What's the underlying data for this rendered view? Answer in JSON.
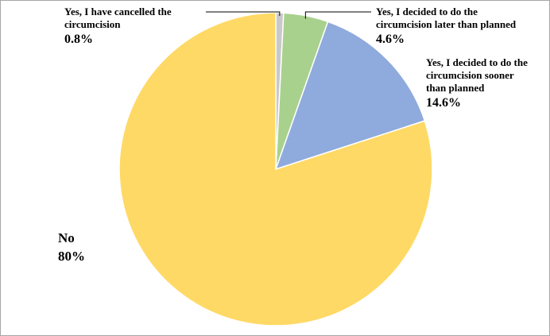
{
  "chart_data": {
    "type": "pie",
    "title": "",
    "slices": [
      {
        "name_lines": [
          "Yes, I have cancelled the",
          "circumcision"
        ],
        "value": 0.8,
        "value_label": "0.8%",
        "color": "#c9c9c9"
      },
      {
        "name_lines": [
          "Yes, I decided to do the",
          "circumcision later than planned"
        ],
        "value": 4.6,
        "value_label": "4.6%",
        "color": "#a9d18e"
      },
      {
        "name_lines": [
          "Yes, I decided to do the",
          "circumcision sooner",
          "than planned"
        ],
        "value": 14.6,
        "value_label": "14.6%",
        "color": "#8faadc"
      },
      {
        "name_lines": [
          "No"
        ],
        "value": 80,
        "value_label": "80%",
        "color": "#ffd966"
      }
    ],
    "start": "12 o'clock",
    "direction": "clockwise",
    "legend": "none",
    "slice_border": "#ffffff"
  }
}
